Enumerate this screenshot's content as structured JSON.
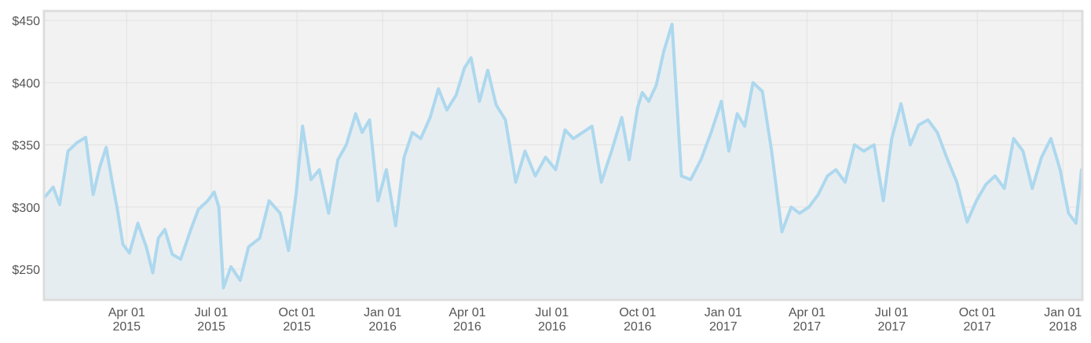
{
  "chart_data": {
    "type": "area",
    "title": "",
    "xlabel": "",
    "ylabel": "",
    "y_ticks": [
      "$250",
      "$300",
      "$350",
      "$400",
      "$450"
    ],
    "y_tick_values": [
      250,
      300,
      350,
      400,
      450
    ],
    "ylim": [
      226,
      457
    ],
    "x_ticks": [
      {
        "line1": "Apr 01",
        "line2": "2015",
        "date": "2015-04-01"
      },
      {
        "line1": "Jul 01",
        "line2": "2015",
        "date": "2015-07-01"
      },
      {
        "line1": "Oct 01",
        "line2": "2015",
        "date": "2015-10-01"
      },
      {
        "line1": "Jan 01",
        "line2": "2016",
        "date": "2016-01-01"
      },
      {
        "line1": "Apr 01",
        "line2": "2016",
        "date": "2016-04-01"
      },
      {
        "line1": "Jul 01",
        "line2": "2016",
        "date": "2016-07-01"
      },
      {
        "line1": "Oct 01",
        "line2": "2016",
        "date": "2016-10-01"
      },
      {
        "line1": "Jan 01",
        "line2": "2017",
        "date": "2017-01-01"
      },
      {
        "line1": "Apr 01",
        "line2": "2017",
        "date": "2017-04-01"
      },
      {
        "line1": "Jul 01",
        "line2": "2017",
        "date": "2017-07-01"
      },
      {
        "line1": "Oct 01",
        "line2": "2017",
        "date": "2017-10-01"
      },
      {
        "line1": "Jan 01",
        "line2": "2018",
        "date": "2018-01-01"
      }
    ],
    "xlim": [
      "2015-01-03",
      "2018-01-21"
    ],
    "grid": true,
    "legend": "none",
    "colors": {
      "line": "#add8ee",
      "fill": "#e6edf1",
      "plot_bg": "#f2f2f2",
      "grid": "#e2e2e2",
      "frame": "#dddddd"
    },
    "series": [
      {
        "x": [
          "2015-01-03",
          "2015-01-12",
          "2015-01-19",
          "2015-01-28",
          "2015-02-07",
          "2015-02-16",
          "2015-02-24",
          "2015-03-03",
          "2015-03-10",
          "2015-03-16",
          "2015-03-22",
          "2015-03-28",
          "2015-04-04",
          "2015-04-13",
          "2015-04-22",
          "2015-04-29",
          "2015-05-05",
          "2015-05-12",
          "2015-05-20",
          "2015-05-29",
          "2015-06-09",
          "2015-06-17",
          "2015-06-27",
          "2015-07-04",
          "2015-07-09",
          "2015-07-14",
          "2015-07-22",
          "2015-08-01",
          "2015-08-10",
          "2015-08-22",
          "2015-09-01",
          "2015-09-13",
          "2015-09-22",
          "2015-09-30",
          "2015-10-07",
          "2015-10-16",
          "2015-10-25",
          "2015-11-04",
          "2015-11-14",
          "2015-11-23",
          "2015-12-03",
          "2015-12-10",
          "2015-12-18",
          "2015-12-27",
          "2016-01-05",
          "2016-01-15",
          "2016-01-24",
          "2016-02-02",
          "2016-02-11",
          "2016-02-21",
          "2016-03-01",
          "2016-03-10",
          "2016-03-20",
          "2016-03-29",
          "2016-04-05",
          "2016-04-14",
          "2016-04-23",
          "2016-05-02",
          "2016-05-12",
          "2016-05-23",
          "2016-06-02",
          "2016-06-13",
          "2016-06-24",
          "2016-07-05",
          "2016-07-15",
          "2016-07-24",
          "2016-08-03",
          "2016-08-13",
          "2016-08-23",
          "2016-09-03",
          "2016-09-14",
          "2016-09-22",
          "2016-10-01",
          "2016-10-06",
          "2016-10-13",
          "2016-10-21",
          "2016-10-29",
          "2016-11-07",
          "2016-11-17",
          "2016-11-27",
          "2016-12-08",
          "2016-12-19",
          "2016-12-30",
          "2017-01-07",
          "2017-01-16",
          "2017-01-24",
          "2017-02-02",
          "2017-02-12",
          "2017-02-22",
          "2017-03-05",
          "2017-03-15",
          "2017-03-24",
          "2017-04-03",
          "2017-04-13",
          "2017-04-23",
          "2017-05-02",
          "2017-05-12",
          "2017-05-22",
          "2017-06-01",
          "2017-06-12",
          "2017-06-22",
          "2017-07-01",
          "2017-07-11",
          "2017-07-21",
          "2017-07-30",
          "2017-08-09",
          "2017-08-19",
          "2017-08-29",
          "2017-09-09",
          "2017-09-20",
          "2017-09-30",
          "2017-10-10",
          "2017-10-20",
          "2017-10-30",
          "2017-11-09",
          "2017-11-19",
          "2017-11-29",
          "2017-12-09",
          "2017-12-19",
          "2017-12-29",
          "2018-01-07",
          "2018-01-15",
          "2018-01-21"
        ],
        "y": [
          308,
          316,
          302,
          345,
          352,
          356,
          310,
          332,
          348,
          322,
          298,
          270,
          263,
          287,
          268,
          247,
          275,
          282,
          262,
          258,
          282,
          298,
          305,
          312,
          300,
          235,
          252,
          241,
          268,
          275,
          305,
          295,
          265,
          310,
          365,
          322,
          330,
          295,
          338,
          350,
          375,
          360,
          370,
          305,
          330,
          285,
          340,
          360,
          355,
          372,
          395,
          378,
          390,
          412,
          420,
          385,
          410,
          382,
          370,
          320,
          345,
          325,
          340,
          330,
          362,
          355,
          360,
          365,
          320,
          345,
          372,
          338,
          380,
          392,
          385,
          398,
          425,
          447,
          325,
          322,
          338,
          360,
          385,
          345,
          375,
          365,
          400,
          393,
          345,
          280,
          300,
          295,
          300,
          310,
          325,
          330,
          320,
          350,
          345,
          350,
          305,
          355,
          383,
          350,
          366,
          370,
          360,
          340,
          320,
          288,
          305,
          318,
          325,
          315,
          355,
          345,
          315,
          340,
          355,
          330,
          295,
          287,
          330
        ]
      }
    ]
  }
}
